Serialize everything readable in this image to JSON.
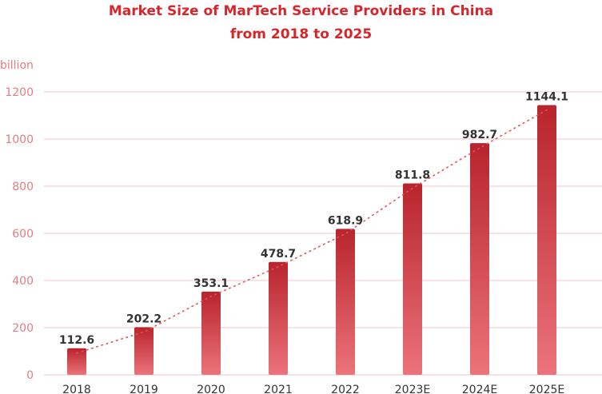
{
  "chart_data": {
    "type": "bar",
    "title": "Market Size of MarTech Service Providers in China",
    "subtitle": "from 2018 to 2025",
    "ylabel": "billion",
    "xlabel": "",
    "categories": [
      "2018",
      "2019",
      "2020",
      "2021",
      "2022",
      "2023E",
      "2024E",
      "2025E"
    ],
    "values": [
      112.6,
      202.2,
      353.1,
      478.7,
      618.9,
      811.8,
      982.7,
      1144.1
    ],
    "value_labels": [
      "112.6",
      "202.2",
      "353.1",
      "478.7",
      "618.9",
      "811.8",
      "982.7",
      "1144.1"
    ],
    "ylim": [
      0,
      1200
    ],
    "yticks": [
      0,
      200,
      400,
      600,
      800,
      1000,
      1200
    ],
    "grid": true,
    "trendline": "dotted",
    "colors": {
      "title": "#d6262c",
      "bar_top": "#b8242c",
      "bar_bottom": "#ec737b",
      "axis_text": "#e07e84",
      "grid": "#f0c4c8",
      "trend": "#e0545c",
      "label": "#333333"
    }
  }
}
